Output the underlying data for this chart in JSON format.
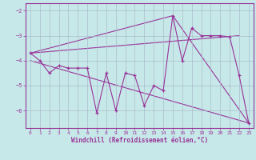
{
  "xlabel": "Windchill (Refroidissement éolien,°C)",
  "bg_color": "#c6e8e8",
  "line_color": "#993399",
  "grid_color": "#aabccc",
  "xlim": [
    -0.5,
    23.5
  ],
  "ylim": [
    -6.7,
    -1.7
  ],
  "yticks": [
    -6,
    -5,
    -4,
    -3,
    -2
  ],
  "xticks": [
    0,
    1,
    2,
    3,
    4,
    5,
    6,
    7,
    8,
    9,
    10,
    11,
    12,
    13,
    14,
    15,
    16,
    17,
    18,
    19,
    20,
    21,
    22,
    23
  ],
  "series1_x": [
    0,
    1,
    2,
    3,
    4,
    5,
    6,
    7,
    8,
    9,
    10,
    11,
    12,
    13,
    14,
    15,
    16,
    17,
    18,
    19,
    20,
    21,
    22,
    23
  ],
  "series1_y": [
    -3.7,
    -4.0,
    -4.5,
    -4.2,
    -4.3,
    -4.3,
    -4.3,
    -6.1,
    -4.5,
    -6.0,
    -4.5,
    -4.6,
    -5.8,
    -5.0,
    -5.2,
    -2.2,
    -4.0,
    -2.7,
    -3.0,
    -3.0,
    -3.0,
    -3.05,
    -4.6,
    -6.5
  ],
  "series2_x": [
    0,
    22
  ],
  "series2_y": [
    -3.7,
    -3.0
  ],
  "series3_x": [
    0,
    15,
    23
  ],
  "series3_y": [
    -3.7,
    -2.2,
    -6.5
  ],
  "series4_x": [
    0,
    23
  ],
  "series4_y": [
    -4.0,
    -6.5
  ]
}
